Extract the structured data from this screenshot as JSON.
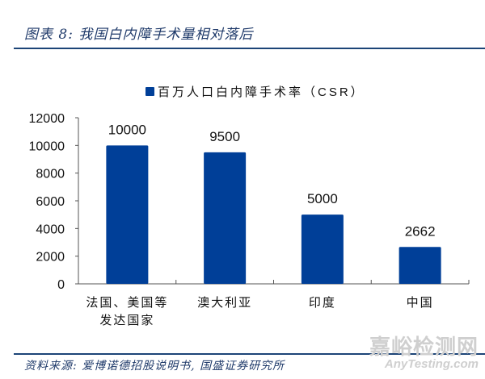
{
  "header": {
    "title": "图表 8:  我国白内障手术量相对落后"
  },
  "footer": {
    "source": "资料来源: 爱博诺德招股说明书, 国盛证券研究所",
    "watermark_cn": "嘉峪检测网",
    "watermark_en": "AnyTesting.com"
  },
  "colors": {
    "bar": "#003f98",
    "rule": "#1c4477",
    "title": "#1f3a6a"
  },
  "chart_data": {
    "type": "bar",
    "title": "",
    "categories": [
      "法国、美国等发达国家",
      "澳大利亚",
      "印度",
      "中国"
    ],
    "category_lines": [
      [
        "法国、美国等",
        "发达国家"
      ],
      [
        "澳大利亚"
      ],
      [
        "印度"
      ],
      [
        "中国"
      ]
    ],
    "series": [
      {
        "name": "百万人口白内障手术率（CSR）",
        "values": [
          10000,
          9500,
          5000,
          2662
        ]
      }
    ],
    "data_labels": [
      "10000",
      "9500",
      "5000",
      "2662"
    ],
    "xlabel": "",
    "ylabel": "",
    "ylim": [
      0,
      12000
    ],
    "yticks": [
      "0",
      "2000",
      "4000",
      "6000",
      "8000",
      "10000",
      "12000"
    ],
    "grid": false,
    "legend_position": "top"
  }
}
